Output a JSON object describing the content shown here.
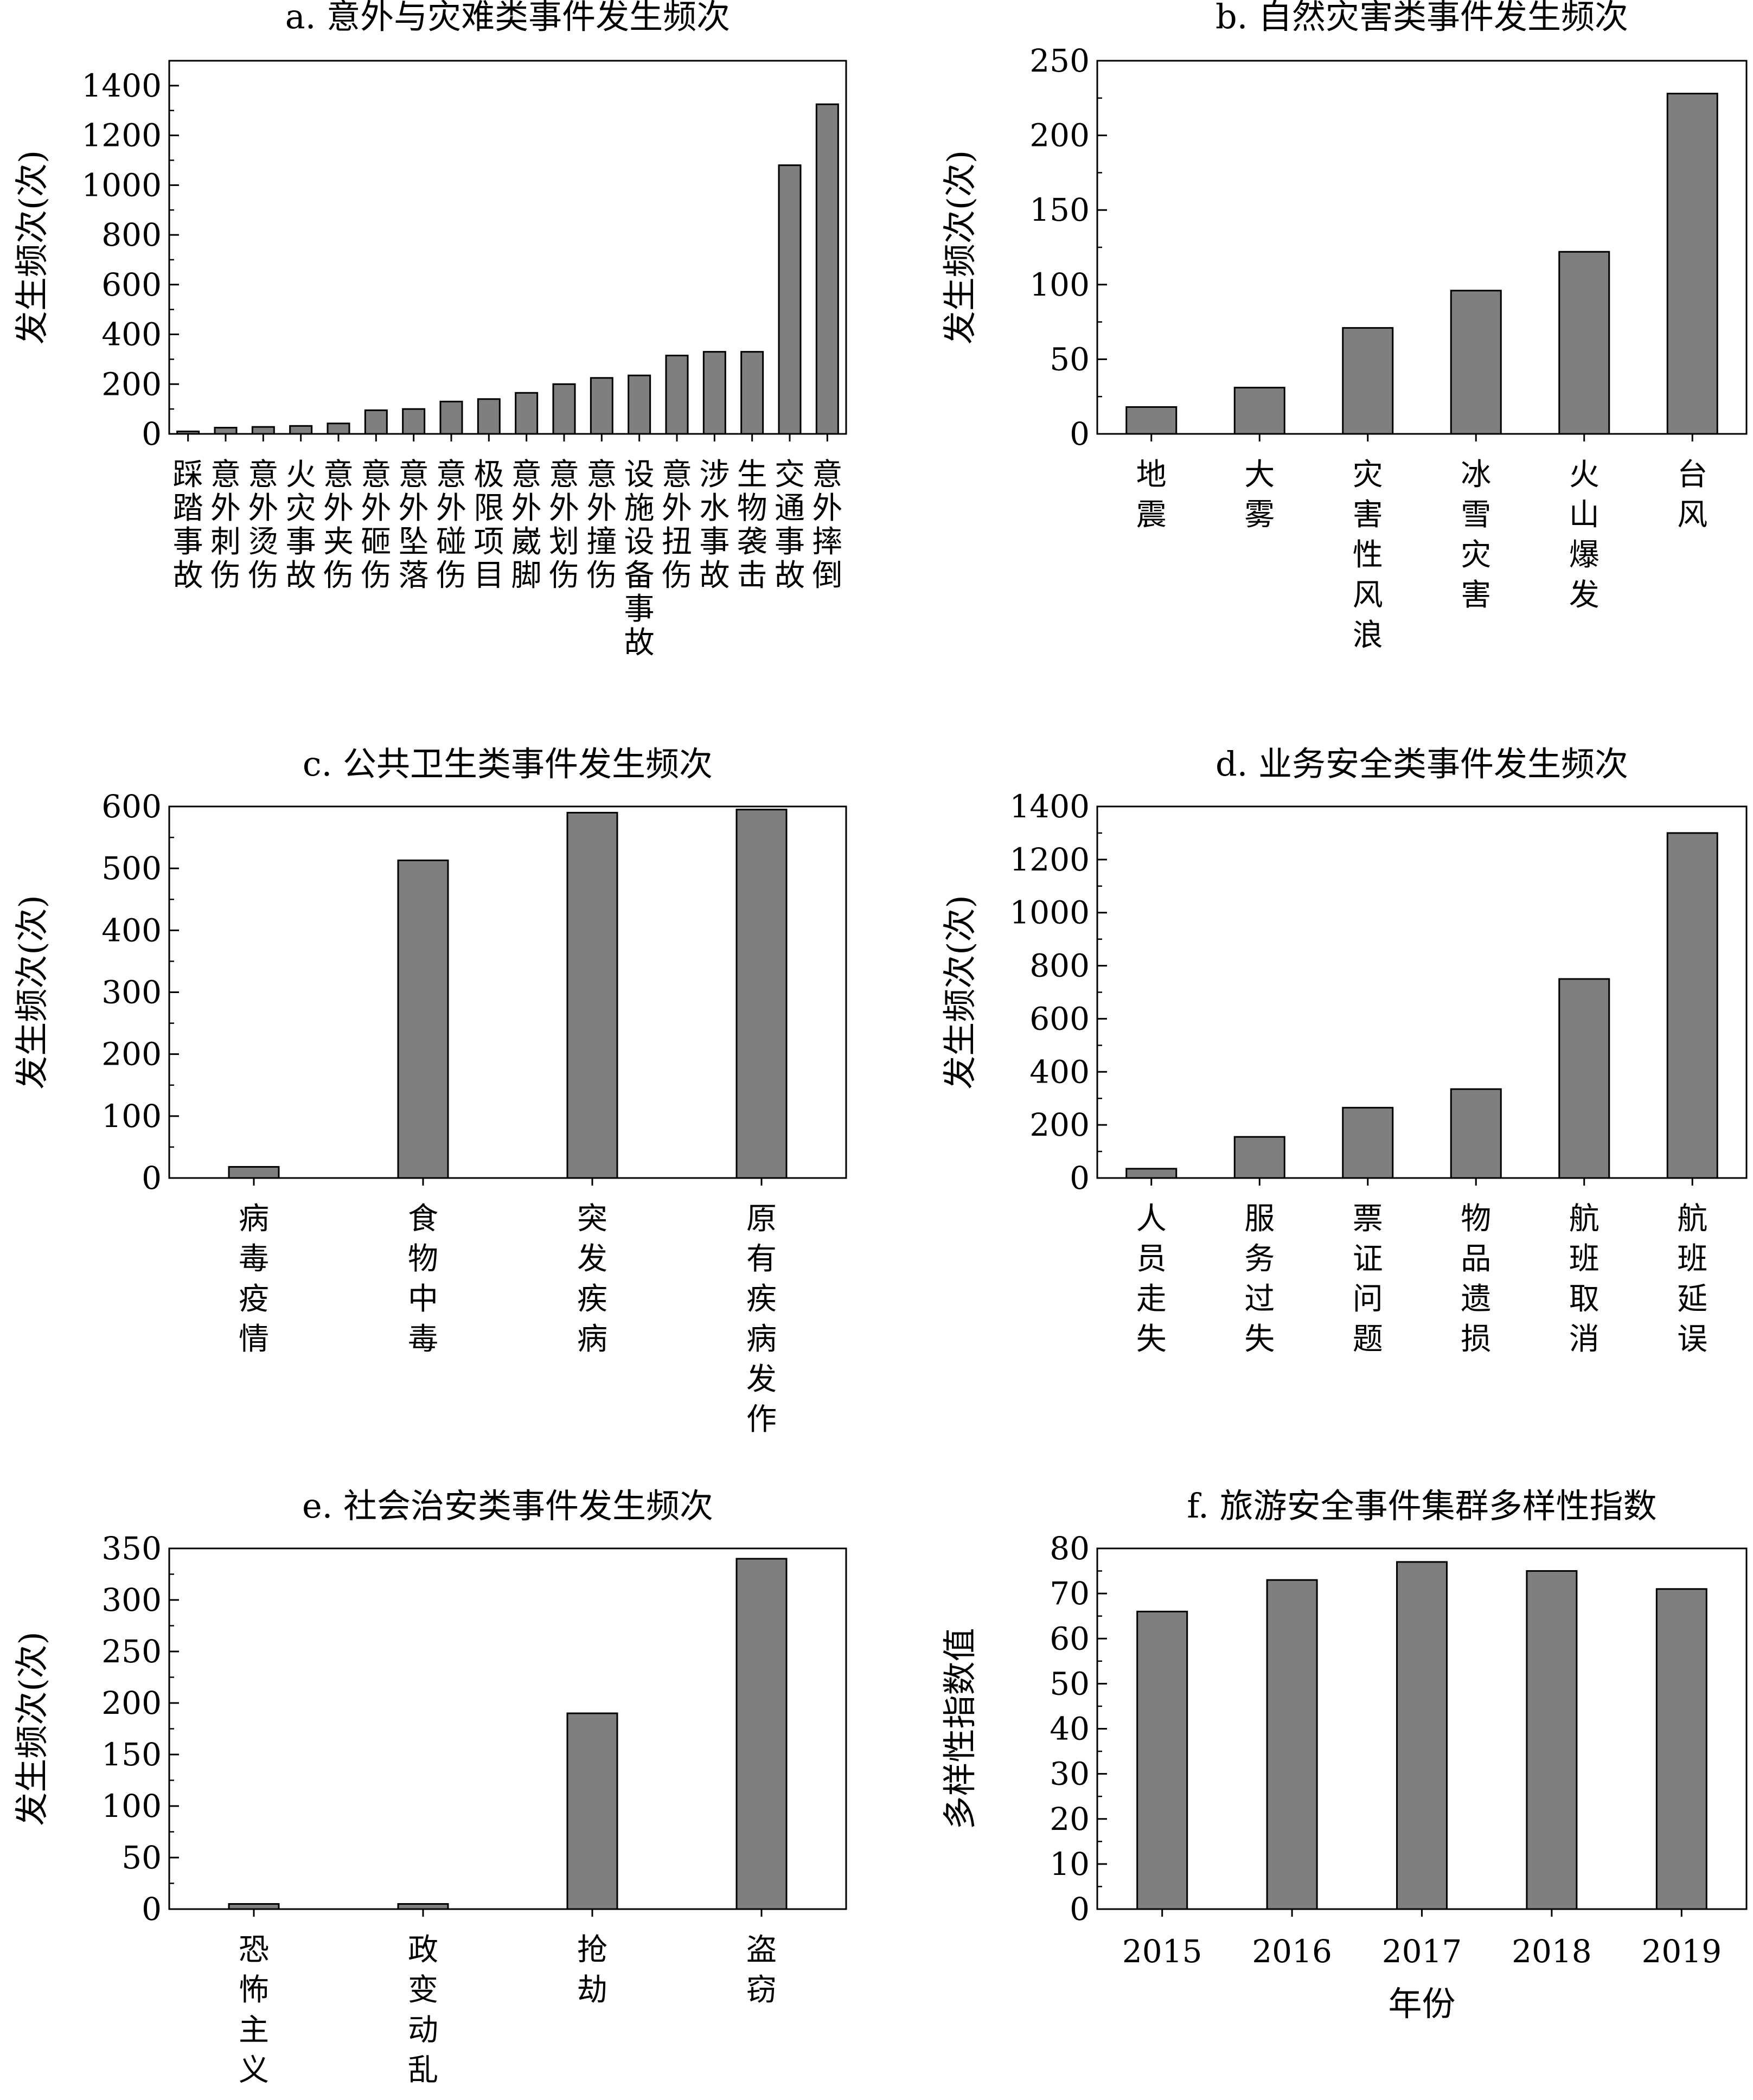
{
  "chart_data": [
    {
      "id": "a",
      "type": "bar",
      "title": "a. 意外与灾难类事件发生频次",
      "ylabel": "发生频次(次)",
      "xlabel": "",
      "ylim": [
        0,
        1500
      ],
      "yticks": [
        0,
        200,
        400,
        600,
        800,
        1000,
        1200,
        1400
      ],
      "minor_step": 100,
      "categories": [
        "踩踏事故",
        "意外刺伤",
        "意外烫伤",
        "火灾事故",
        "意外夹伤",
        "意外砸伤",
        "意外坠落",
        "意外碰伤",
        "极限项目",
        "意外崴脚",
        "意外划伤",
        "意外撞伤",
        "设施设备事故",
        "意外扭伤",
        "涉水事故",
        "生物袭击",
        "交通事故",
        "意外摔倒"
      ],
      "values": [
        10,
        25,
        28,
        32,
        42,
        95,
        100,
        130,
        140,
        165,
        200,
        225,
        235,
        315,
        330,
        330,
        1080,
        1325
      ],
      "bar_color": "#7f7f7f",
      "grid": false
    },
    {
      "id": "b",
      "type": "bar",
      "title": "b. 自然灾害类事件发生频次",
      "ylabel": "发生频次(次)",
      "xlabel": "",
      "ylim": [
        0,
        250
      ],
      "yticks": [
        0,
        50,
        100,
        150,
        200,
        250
      ],
      "minor_step": 25,
      "categories": [
        "地震",
        "大雾",
        "灾害性风浪",
        "冰雪灾害",
        "火山爆发",
        "台风"
      ],
      "values": [
        18,
        31,
        71,
        96,
        122,
        228
      ],
      "bar_color": "#7f7f7f",
      "grid": false
    },
    {
      "id": "c",
      "type": "bar",
      "title": "c. 公共卫生类事件发生频次",
      "ylabel": "发生频次(次)",
      "xlabel": "",
      "ylim": [
        0,
        600
      ],
      "yticks": [
        0,
        100,
        200,
        300,
        400,
        500,
        600
      ],
      "minor_step": 50,
      "categories": [
        "病毒疫情",
        "食物中毒",
        "突发疾病",
        "原有疾病发作"
      ],
      "values": [
        18,
        513,
        590,
        595
      ],
      "bar_color": "#7f7f7f",
      "grid": false
    },
    {
      "id": "d",
      "type": "bar",
      "title": "d. 业务安全类事件发生频次",
      "ylabel": "发生频次(次)",
      "xlabel": "",
      "ylim": [
        0,
        1400
      ],
      "yticks": [
        0,
        200,
        400,
        600,
        800,
        1000,
        1200,
        1400
      ],
      "minor_step": 100,
      "categories": [
        "人员走失",
        "服务过失",
        "票证问题",
        "物品遗损",
        "航班取消",
        "航班延误"
      ],
      "values": [
        35,
        155,
        265,
        335,
        750,
        1300
      ],
      "bar_color": "#7f7f7f",
      "grid": false
    },
    {
      "id": "e",
      "type": "bar",
      "title": "e. 社会治安类事件发生频次",
      "ylabel": "发生频次(次)",
      "xlabel": "",
      "ylim": [
        0,
        350
      ],
      "yticks": [
        0,
        50,
        100,
        150,
        200,
        250,
        300,
        350
      ],
      "minor_step": 25,
      "categories": [
        "恐怖主义",
        "政变动乱",
        "抢劫",
        "盗窃"
      ],
      "values": [
        5,
        5,
        190,
        340
      ],
      "bar_color": "#7f7f7f",
      "grid": false
    },
    {
      "id": "f",
      "type": "bar",
      "title": "f. 旅游安全事件集群多样性指数",
      "ylabel": "多样性指数值",
      "xlabel": "年份",
      "ylim": [
        0,
        80
      ],
      "yticks": [
        0,
        10,
        20,
        30,
        40,
        50,
        60,
        70,
        80
      ],
      "minor_step": 5,
      "categories": [
        "2015",
        "2016",
        "2017",
        "2018",
        "2019"
      ],
      "values": [
        66,
        73,
        77,
        75,
        71
      ],
      "bar_color": "#7f7f7f",
      "grid": false
    }
  ]
}
